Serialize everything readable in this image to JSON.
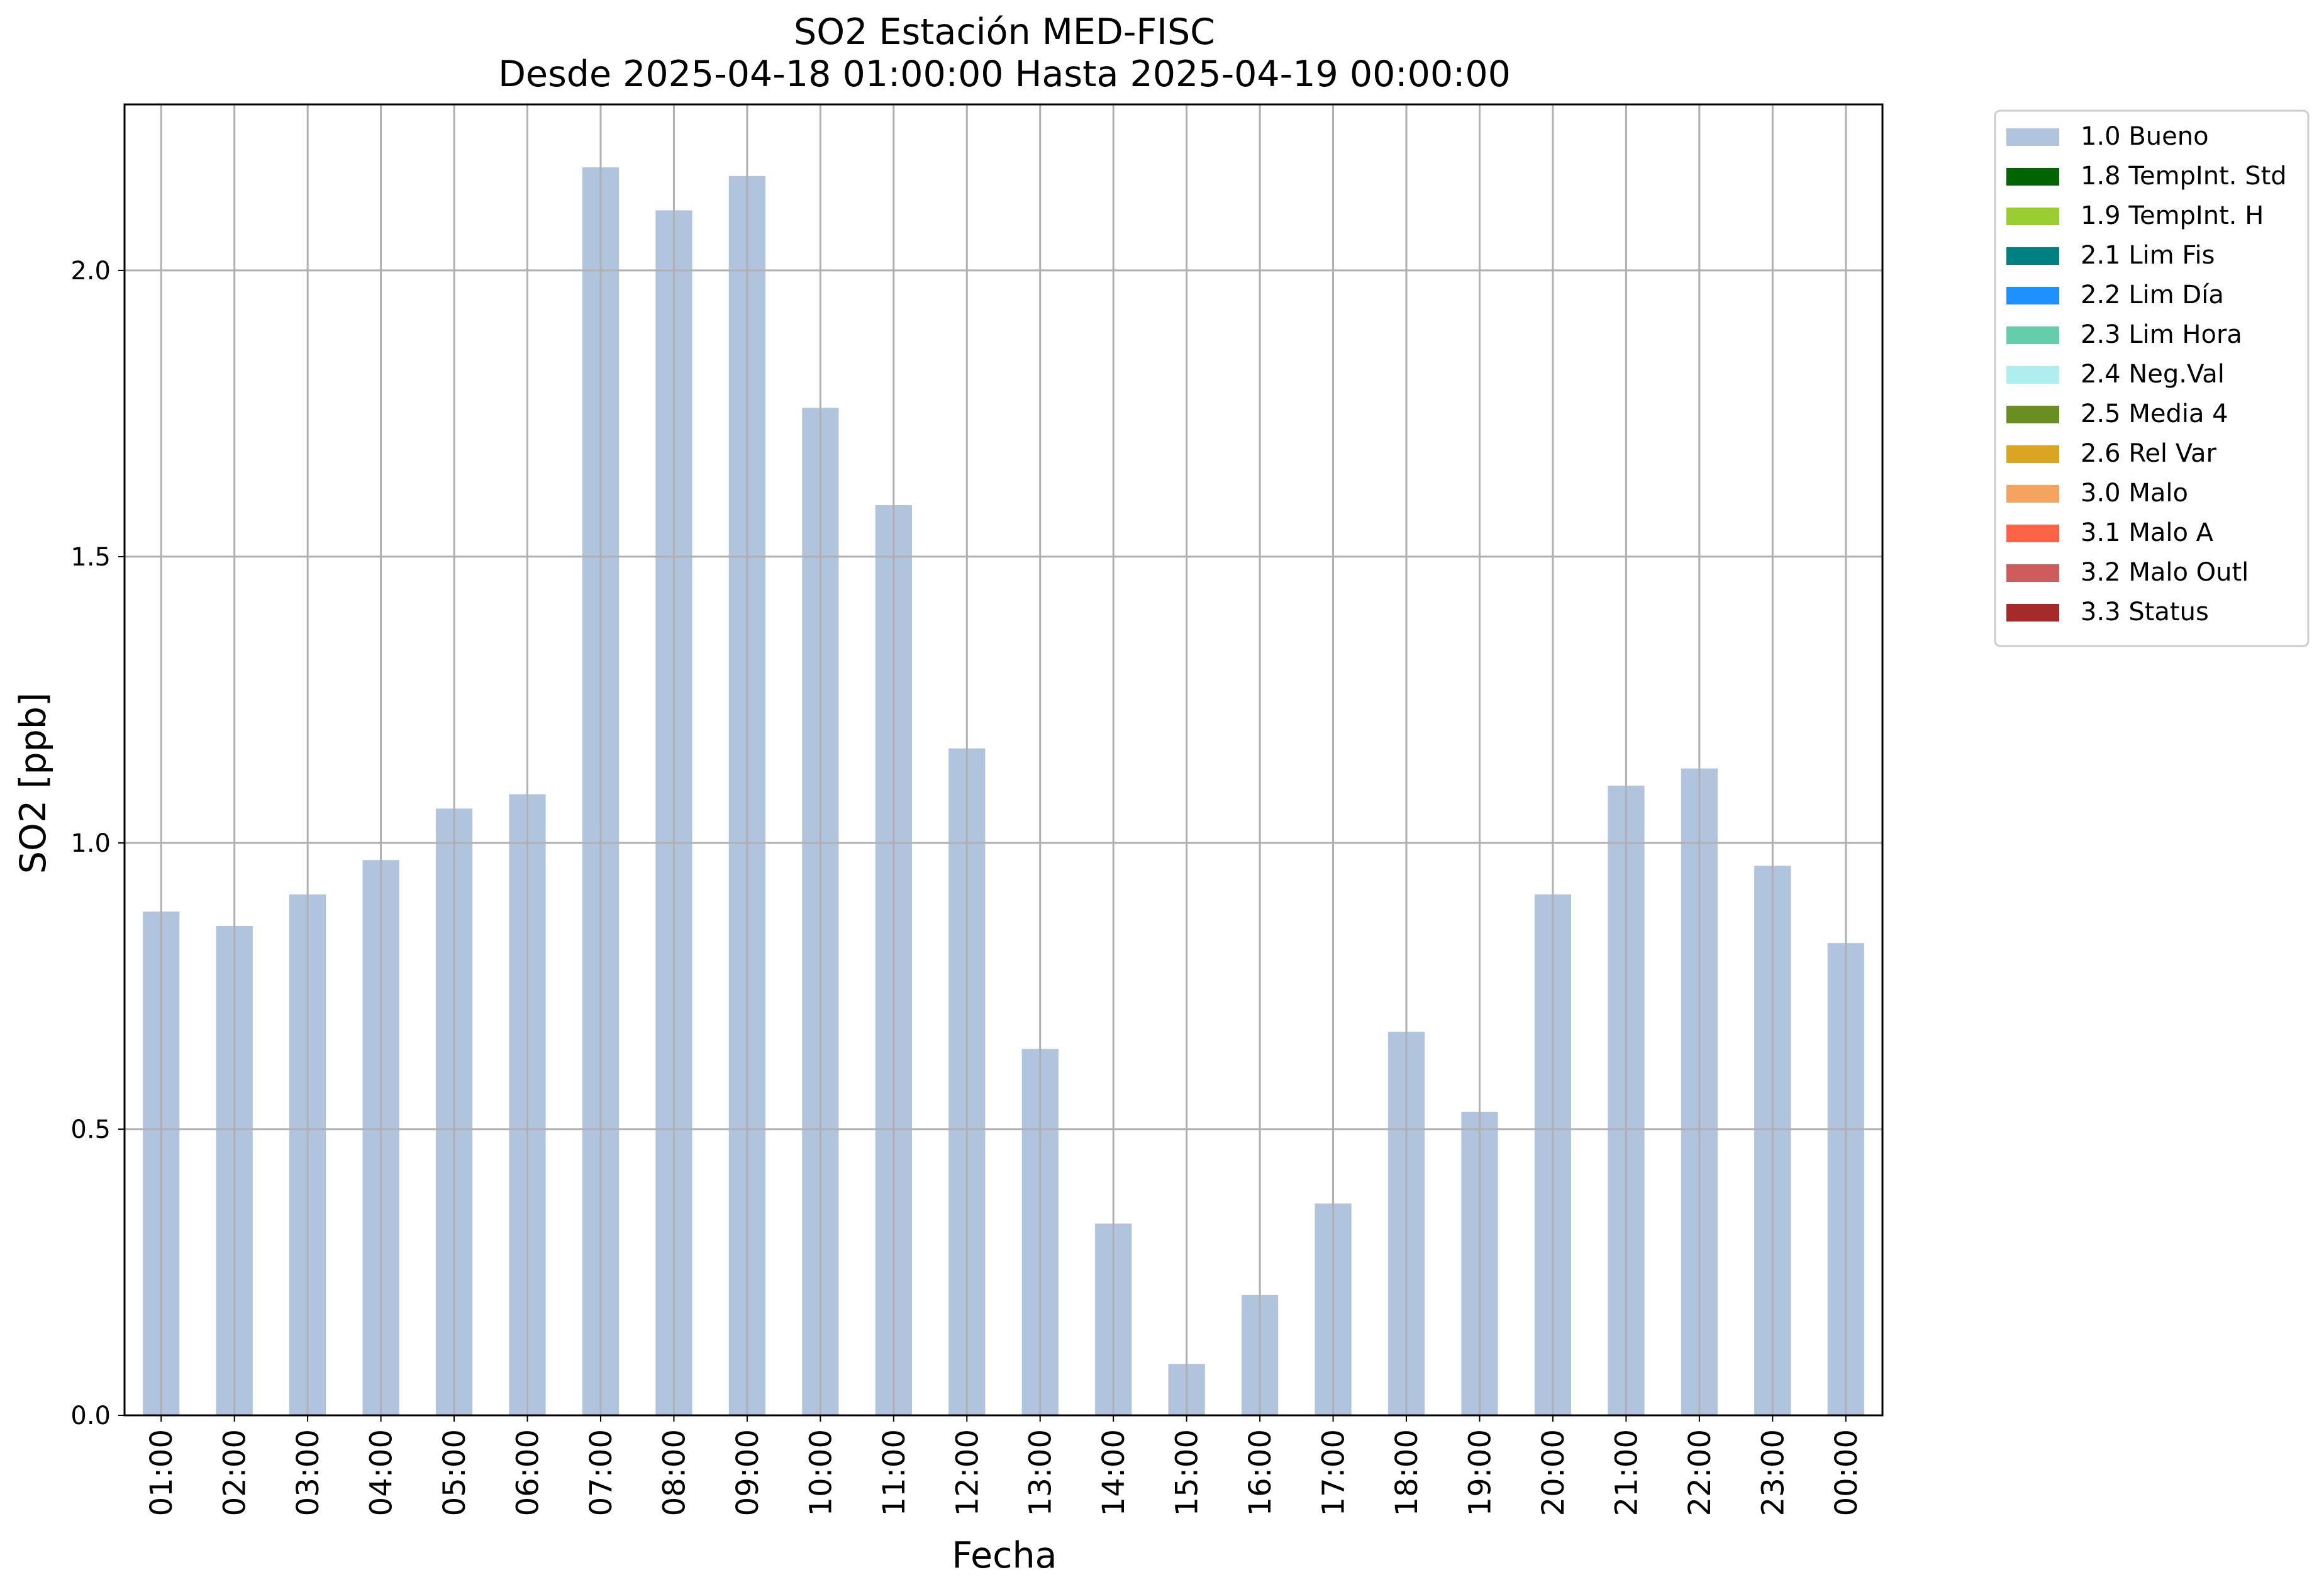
{
  "chart_data": {
    "type": "bar",
    "title": "SO2 Estación MED-FISC",
    "subtitle": "Desde 2025-04-18 01:00:00 Hasta 2025-04-19 00:00:00",
    "xlabel": "Fecha",
    "ylabel": "SO2 [ppb]",
    "ylim": [
      0,
      2.29
    ],
    "yticks": [
      "0.0",
      "0.5",
      "1.0",
      "1.5",
      "2.0"
    ],
    "grid": true,
    "legend_position": "outside top-right",
    "bar_color": "#b0c4de",
    "categories": [
      "01:00",
      "02:00",
      "03:00",
      "04:00",
      "05:00",
      "06:00",
      "07:00",
      "08:00",
      "09:00",
      "10:00",
      "11:00",
      "12:00",
      "13:00",
      "14:00",
      "15:00",
      "16:00",
      "17:00",
      "18:00",
      "19:00",
      "20:00",
      "21:00",
      "22:00",
      "23:00",
      "00:00"
    ],
    "values": [
      0.88,
      0.855,
      0.91,
      0.97,
      1.06,
      1.085,
      2.18,
      2.105,
      2.165,
      1.76,
      1.59,
      1.165,
      0.64,
      0.335,
      0.09,
      0.21,
      0.37,
      0.67,
      0.53,
      0.91,
      1.1,
      1.13,
      0.96,
      0.825
    ],
    "legend": [
      {
        "label": "1.0 Bueno",
        "color": "#b0c4de"
      },
      {
        "label": "1.8 TempInt. Std",
        "color": "#006400"
      },
      {
        "label": "1.9 TempInt. H",
        "color": "#9acd32"
      },
      {
        "label": "2.1 Lim Fis",
        "color": "#008080"
      },
      {
        "label": "2.2 Lim Día",
        "color": "#1e90ff"
      },
      {
        "label": "2.3 Lim Hora",
        "color": "#66cdaa"
      },
      {
        "label": "2.4 Neg.Val",
        "color": "#afeeee"
      },
      {
        "label": "2.5 Media 4",
        "color": "#6b8e23"
      },
      {
        "label": "2.6 Rel Var",
        "color": "#daa520"
      },
      {
        "label": "3.0 Malo",
        "color": "#f4a460"
      },
      {
        "label": "3.1 Malo A",
        "color": "#ff6347"
      },
      {
        "label": "3.2 Malo Outl",
        "color": "#cd5c5c"
      },
      {
        "label": "3.3 Status",
        "color": "#a52a2a"
      }
    ]
  }
}
